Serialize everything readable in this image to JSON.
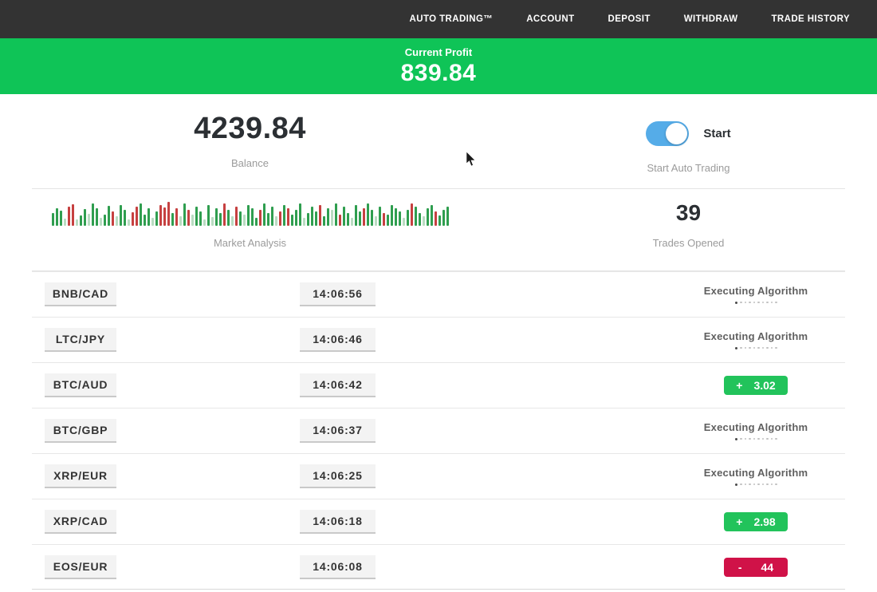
{
  "nav": {
    "items": [
      {
        "label": "AUTO TRADING™"
      },
      {
        "label": "ACCOUNT"
      },
      {
        "label": "DEPOSIT"
      },
      {
        "label": "WITHDRAW"
      },
      {
        "label": "TRADE HISTORY"
      }
    ]
  },
  "banner": {
    "label": "Current Profit",
    "value": "839.84"
  },
  "balance": {
    "value": "4239.84",
    "label": "Balance"
  },
  "auto_trading": {
    "toggle_label": "Start",
    "sub_label": "Start Auto Trading",
    "toggle_state": "on"
  },
  "market": {
    "label": "Market Analysis",
    "bars": [
      "16g",
      "22g",
      "19g",
      "9lg",
      "24r",
      "27r",
      "8lg",
      "13g",
      "21g",
      "15lg",
      "28g",
      "22g",
      "10lg",
      "14g",
      "25g",
      "18r",
      "12lg",
      "26g",
      "20g",
      "8lg",
      "17r",
      "24r",
      "28g",
      "14g",
      "22g",
      "10lg",
      "18g",
      "26r",
      "23r",
      "30r",
      "16g",
      "22r",
      "12lg",
      "28g",
      "20r",
      "14lg",
      "24g",
      "18g",
      "8lg",
      "26g",
      "11lg",
      "22g",
      "16g",
      "28r",
      "20g",
      "12lg",
      "24r",
      "18g",
      "14lg",
      "26g",
      "22g",
      "10g",
      "20r",
      "28g",
      "16g",
      "24g",
      "12lg",
      "18r",
      "26g",
      "22r",
      "14g",
      "20g",
      "28g",
      "10lg",
      "16g",
      "24g",
      "18g",
      "26r",
      "12g",
      "22g",
      "20lg",
      "28g",
      "14r",
      "24g",
      "16g",
      "10lg",
      "26g",
      "18g",
      "22r",
      "28g",
      "20g",
      "12lg",
      "24g",
      "16r",
      "14g",
      "26g",
      "22g",
      "18g",
      "10lg",
      "20g",
      "28r",
      "24g",
      "16g",
      "12lg",
      "22g",
      "26g",
      "18r",
      "13g",
      "20g",
      "24g"
    ],
    "bar_palette": {
      "g": "#2f9e4f",
      "r": "#c64040",
      "lg": "#b9dcc2",
      "lr": "#e8c3c6"
    }
  },
  "trades_opened": {
    "value": "39",
    "label": "Trades Opened"
  },
  "table": {
    "executing_label": "Executing Algorithm",
    "rows": [
      {
        "pair": "BNB/CAD",
        "time": "14:06:56",
        "status": {
          "type": "executing"
        }
      },
      {
        "pair": "LTC/JPY",
        "time": "14:06:46",
        "status": {
          "type": "executing"
        }
      },
      {
        "pair": "BTC/AUD",
        "time": "14:06:42",
        "status": {
          "type": "profit",
          "sign": "+",
          "value": "3.02"
        }
      },
      {
        "pair": "BTC/GBP",
        "time": "14:06:37",
        "status": {
          "type": "executing"
        }
      },
      {
        "pair": "XRP/EUR",
        "time": "14:06:25",
        "status": {
          "type": "executing"
        }
      },
      {
        "pair": "XRP/CAD",
        "time": "14:06:18",
        "status": {
          "type": "profit",
          "sign": "+",
          "value": "2.98"
        }
      },
      {
        "pair": "EOS/EUR",
        "time": "14:06:08",
        "status": {
          "type": "loss",
          "sign": "-",
          "value": "44"
        }
      }
    ]
  },
  "colors": {
    "nav_bg": "#333333",
    "banner_green": "#0fc457",
    "badge_green": "#22c35b",
    "badge_red": "#d01248",
    "toggle_blue": "#55ace8"
  }
}
